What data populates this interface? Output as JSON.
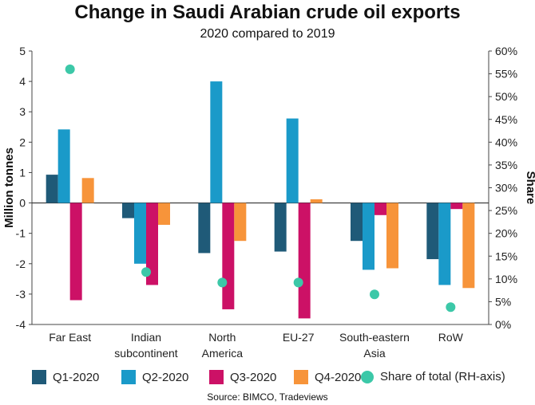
{
  "chart_data": {
    "type": "bar",
    "title": "Change in Saudi Arabian crude oil exports",
    "subtitle": "2020 compared to 2019",
    "ylabel": "Million tonnes",
    "y2label": "Share",
    "ylim": [
      -4,
      5
    ],
    "y2lim": [
      0,
      60
    ],
    "yticks": [
      "5",
      "4",
      "3",
      "2",
      "1",
      "0",
      "-1",
      "-2",
      "-3",
      "-4"
    ],
    "y2ticks": [
      "60%",
      "55%",
      "50%",
      "45%",
      "40%",
      "35%",
      "30%",
      "25%",
      "20%",
      "15%",
      "10%",
      "5%",
      "0%"
    ],
    "categories": [
      [
        "Far East"
      ],
      [
        "Indian",
        "subcontinent"
      ],
      [
        "North",
        "America"
      ],
      [
        "EU-27"
      ],
      [
        "South-eastern",
        "Asia"
      ],
      [
        "RoW"
      ]
    ],
    "series": [
      {
        "name": "Q1-2020",
        "color": "#1f5a78",
        "values": [
          0.93,
          -0.5,
          -1.65,
          -1.6,
          -1.25,
          -1.85
        ]
      },
      {
        "name": "Q2-2020",
        "color": "#1a9ac9",
        "values": [
          2.42,
          -2.0,
          4.0,
          2.78,
          -2.2,
          -2.7
        ]
      },
      {
        "name": "Q3-2020",
        "color": "#cc1166",
        "values": [
          -3.2,
          -2.7,
          -3.5,
          -3.8,
          -0.4,
          -0.2
        ]
      },
      {
        "name": "Q4-2020",
        "color": "#f7943a",
        "values": [
          0.82,
          -0.72,
          -1.25,
          0.12,
          -2.15,
          -2.8
        ]
      }
    ],
    "share": {
      "name": "Share of total (RH-axis)",
      "color": "#3cc8a8",
      "values": [
        56,
        11.5,
        9.2,
        9.2,
        6.6,
        3.8
      ]
    },
    "grid": false,
    "legend_position": "bottom"
  },
  "source": "Source: BIMCO, Tradeviews"
}
